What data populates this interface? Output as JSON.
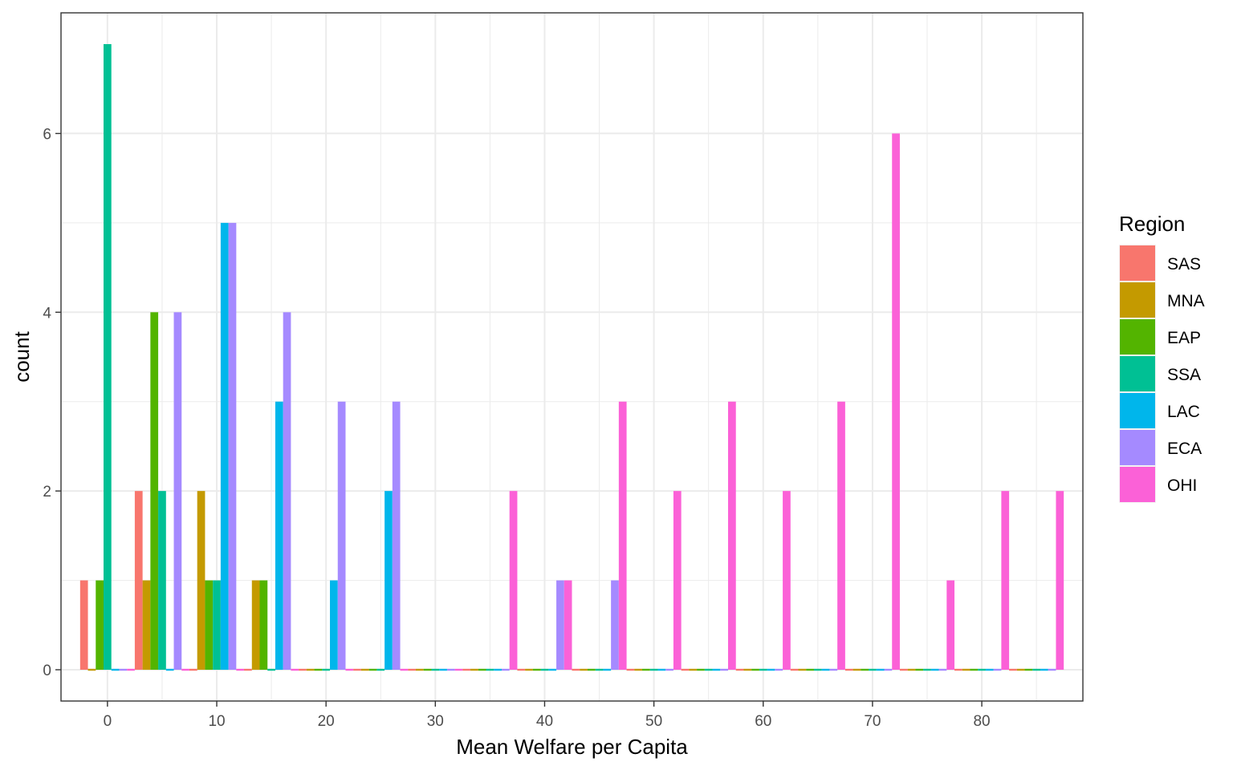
{
  "chart_data": {
    "type": "bar",
    "subtype": "histogram-dodged",
    "title": "",
    "xlabel": "Mean Welfare per Capita",
    "ylabel": "count",
    "xlim": [
      -4.25,
      89.25
    ],
    "ylim": [
      -0.35,
      7.35
    ],
    "x_ticks": [
      0,
      10,
      20,
      30,
      40,
      50,
      60,
      70,
      80
    ],
    "y_ticks": [
      0,
      2,
      4,
      6
    ],
    "bin_centers": [
      0,
      5,
      10,
      15,
      20,
      25,
      30,
      35,
      40,
      45,
      50,
      55,
      60,
      65,
      70,
      75,
      80,
      85
    ],
    "bin_width": 5,
    "grid": true,
    "legend": {
      "title": "Region",
      "position": "right"
    },
    "series": [
      {
        "name": "SAS",
        "color": "#F8766D",
        "values": [
          1,
          2,
          0,
          0,
          0,
          0,
          0,
          0,
          0,
          0,
          0,
          0,
          0,
          0,
          0,
          0,
          0,
          0
        ]
      },
      {
        "name": "MNA",
        "color": "#C49A00",
        "values": [
          0,
          1,
          2,
          1,
          0,
          0,
          0,
          0,
          0,
          0,
          0,
          0,
          0,
          0,
          0,
          0,
          0,
          0
        ]
      },
      {
        "name": "EAP",
        "color": "#53B400",
        "values": [
          1,
          4,
          1,
          1,
          0,
          0,
          0,
          0,
          0,
          0,
          0,
          0,
          0,
          0,
          0,
          0,
          0,
          0
        ]
      },
      {
        "name": "SSA",
        "color": "#00C094",
        "values": [
          7,
          2,
          1,
          0,
          0,
          0,
          0,
          0,
          0,
          0,
          0,
          0,
          0,
          0,
          0,
          0,
          0,
          0
        ]
      },
      {
        "name": "LAC",
        "color": "#00B6EB",
        "values": [
          0,
          0,
          5,
          3,
          1,
          2,
          0,
          0,
          0,
          0,
          0,
          0,
          0,
          0,
          0,
          0,
          0,
          0
        ]
      },
      {
        "name": "ECA",
        "color": "#A58AFF",
        "values": [
          0,
          4,
          5,
          4,
          3,
          3,
          0,
          0,
          1,
          1,
          0,
          0,
          0,
          0,
          0,
          0,
          0,
          0
        ]
      },
      {
        "name": "OHI",
        "color": "#FB61D7",
        "values": [
          0,
          0,
          0,
          0,
          0,
          0,
          0,
          2,
          1,
          3,
          2,
          3,
          2,
          3,
          6,
          1,
          2,
          2
        ]
      }
    ]
  }
}
